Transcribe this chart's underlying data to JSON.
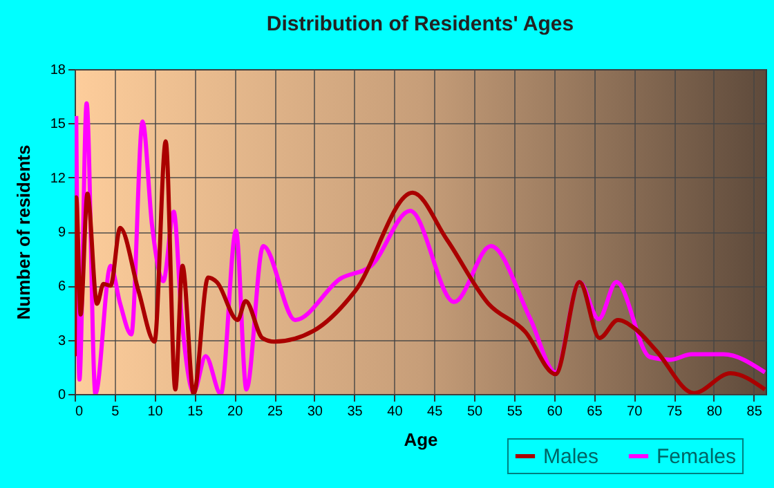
{
  "chart_data": {
    "type": "line",
    "title": "Distribution of Residents' Ages",
    "xlabel": "Age",
    "ylabel": "Number of residents",
    "xlim": [
      0,
      86.5
    ],
    "xticks": [
      0,
      5,
      10,
      15,
      20,
      25,
      30,
      35,
      40,
      45,
      50,
      55,
      60,
      65,
      70,
      75,
      80,
      85
    ],
    "ylim": [
      0,
      18
    ],
    "yticks": [
      0,
      3,
      6,
      9,
      12,
      15,
      18
    ],
    "grid": true,
    "legend": "bottom right",
    "line_style": "solid",
    "series": [
      {
        "name": "Males",
        "color": "#aa0000",
        "x": [
          0,
          0.2,
          0.75,
          1.6,
          2.8,
          3.6,
          4.5,
          5.7,
          8,
          10,
          11.4,
          12.6,
          13.5,
          14.9,
          16.7,
          17.8,
          20.4,
          21.4,
          23.5,
          25,
          29.9,
          35.1,
          42.3,
          46.6,
          51.8,
          56.4,
          60.2,
          63.2,
          65.7,
          68,
          70.2,
          72.8,
          77.5,
          82.1,
          86.4
        ],
        "values": [
          2.1,
          10.9,
          4.4,
          11.1,
          5.0,
          6.1,
          6.0,
          9.2,
          5.7,
          2.9,
          14.0,
          0.25,
          7.1,
          0,
          6.45,
          6.2,
          4.1,
          5.15,
          3.1,
          2.9,
          3.5,
          5.7,
          11.15,
          8.55,
          5.0,
          3.45,
          1.1,
          6.2,
          3.1,
          4.1,
          3.6,
          2.4,
          0.05,
          1.15,
          0.25
        ]
      },
      {
        "name": "Females",
        "color": "#ff00ff",
        "x": [
          0.2,
          0.6,
          1.5,
          2.6,
          4.5,
          5.7,
          7.1,
          8.5,
          9.7,
          11.1,
          12.4,
          13.4,
          14.9,
          16.4,
          18.3,
          20.2,
          21.5,
          23.6,
          27.6,
          33.3,
          37.1,
          42,
          47.5,
          52.1,
          57,
          60.2,
          63.2,
          65.6,
          67.8,
          72,
          74.6,
          77.2,
          81.2,
          86.4
        ],
        "values": [
          15.4,
          0.8,
          16.1,
          0,
          7.1,
          5.0,
          3.3,
          15.1,
          9.3,
          6.25,
          10.1,
          4.2,
          0.1,
          2.1,
          0,
          9.05,
          0.25,
          8.2,
          4.1,
          6.4,
          7.1,
          10.15,
          5.1,
          8.2,
          4.2,
          1.2,
          6.2,
          4.15,
          6.2,
          2.05,
          1.9,
          2.2,
          2.2,
          1.2
        ]
      }
    ]
  }
}
